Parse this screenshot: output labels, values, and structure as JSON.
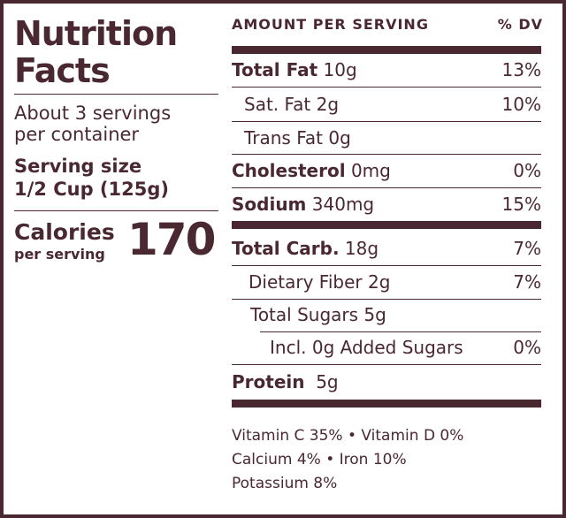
{
  "title": [
    "Nutrition",
    "Facts"
  ],
  "servings": [
    "About 3 servings",
    "per container"
  ],
  "serving_size": [
    "Serving size",
    "1/2 Cup (125g)"
  ],
  "calories": {
    "label": "Calories",
    "sublabel": "per serving",
    "value": "170"
  },
  "header": {
    "amount": "AMOUNT PER SERVING",
    "dv": "% DV"
  },
  "rows": [
    {
      "label": "Total Fat",
      "amount": "10g",
      "dv": "13%"
    },
    {
      "label": "Sat. Fat",
      "amount": "2g",
      "dv": "10%"
    },
    {
      "label": "Trans Fat",
      "amount": "0g"
    },
    {
      "label": "Cholesterol",
      "amount": "0mg",
      "dv": "0%"
    },
    {
      "label": "Sodium",
      "amount": "340mg",
      "dv": "15%"
    },
    {
      "label": "Total Carb.",
      "amount": "18g",
      "dv": "7%"
    },
    {
      "label": "Dietary Fiber",
      "amount": "2g",
      "dv": "7%"
    },
    {
      "label": "Total Sugars",
      "amount": "5g"
    },
    {
      "label": "Incl. 0g Added Sugars",
      "dv": "0%"
    },
    {
      "label": "Protein",
      "amount": "5g"
    }
  ],
  "footer": [
    "Vitamin C 35% • Vitamin D 0%",
    "Calcium 4% • Iron 10%",
    "Potassium 8%"
  ]
}
